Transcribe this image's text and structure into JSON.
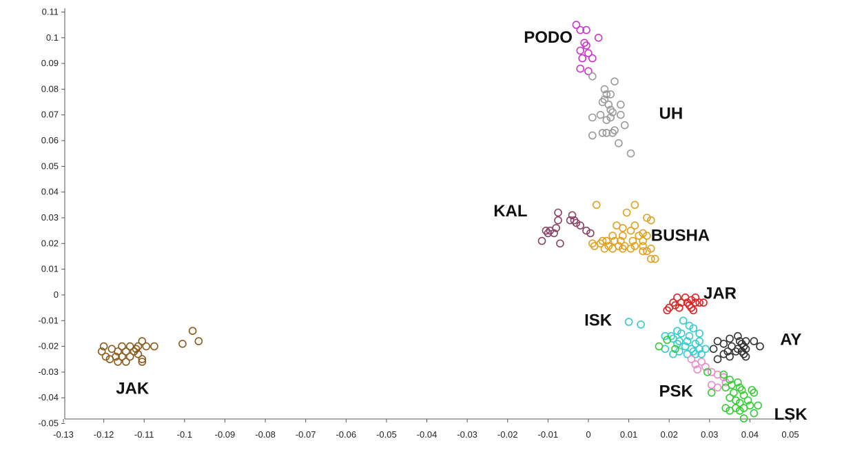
{
  "chart_data": {
    "type": "scatter",
    "title": "",
    "xlabel": "",
    "ylabel": "",
    "xlim": [
      -0.13,
      0.05
    ],
    "ylim": [
      -0.052,
      0.112
    ],
    "grid": false,
    "legend": "none",
    "x_ticks": [
      "-0.13",
      "-0.12",
      "-0.11",
      "-0.1",
      "-0.09",
      "-0.08",
      "-0.07",
      "-0.06",
      "-0.05",
      "-0.04",
      "-0.03",
      "-0.02",
      "-0.01",
      "0",
      "0.01",
      "0.02",
      "0.03",
      "0.04",
      "0.05"
    ],
    "y_ticks": [
      "0.11",
      "0.1",
      "0.09",
      "0.08",
      "0.07",
      "0.06",
      "0.05",
      "0.04",
      "0.03",
      "0.02",
      "0.01",
      "0",
      "-0.01",
      "-0.02",
      "-0.03",
      "-0.04",
      "-0.05"
    ],
    "series": [
      {
        "name": "PODO",
        "color": "#cc33cc",
        "label_at": [
          -0.016,
          0.098
        ],
        "points": [
          [
            -0.003,
            0.105
          ],
          [
            -0.002,
            0.103
          ],
          [
            -0.0005,
            0.103
          ],
          [
            0.0025,
            0.1
          ],
          [
            -0.001,
            0.098
          ],
          [
            -0.0005,
            0.097
          ],
          [
            -0.002,
            0.095
          ],
          [
            0.0,
            0.094
          ],
          [
            -0.0015,
            0.092
          ],
          [
            0.001,
            0.092
          ],
          [
            -0.002,
            0.088
          ],
          [
            0.0,
            0.087
          ]
        ]
      },
      {
        "name": "UH",
        "color": "#999999",
        "label_at": [
          0.0175,
          0.0685
        ],
        "points": [
          [
            0.001,
            0.085
          ],
          [
            0.0065,
            0.083
          ],
          [
            0.004,
            0.08
          ],
          [
            0.0045,
            0.078
          ],
          [
            0.0055,
            0.078
          ],
          [
            0.004,
            0.076
          ],
          [
            0.0035,
            0.075
          ],
          [
            0.005,
            0.074
          ],
          [
            0.008,
            0.074
          ],
          [
            0.0055,
            0.072
          ],
          [
            0.006,
            0.071
          ],
          [
            0.003,
            0.07
          ],
          [
            0.0055,
            0.069
          ],
          [
            0.008,
            0.07
          ],
          [
            0.001,
            0.069
          ],
          [
            0.0045,
            0.068
          ],
          [
            0.009,
            0.066
          ],
          [
            0.0045,
            0.063
          ],
          [
            0.006,
            0.063
          ],
          [
            0.0065,
            0.064
          ],
          [
            0.0035,
            0.063
          ],
          [
            0.001,
            0.062
          ],
          [
            0.0075,
            0.059
          ],
          [
            0.0105,
            0.055
          ]
        ]
      },
      {
        "name": "KAL",
        "color": "#884466",
        "label_at": [
          -0.0235,
          0.0305
        ],
        "points": [
          [
            -0.0075,
            0.032
          ],
          [
            -0.004,
            0.031
          ],
          [
            -0.0075,
            0.029
          ],
          [
            -0.0045,
            0.029
          ],
          [
            -0.0035,
            0.029
          ],
          [
            -0.003,
            0.028
          ],
          [
            -0.002,
            0.027
          ],
          [
            -0.008,
            0.026
          ],
          [
            -0.0105,
            0.025
          ],
          [
            -0.0095,
            0.025
          ],
          [
            -0.0005,
            0.025
          ],
          [
            0.0005,
            0.024
          ],
          [
            -0.01,
            0.024
          ],
          [
            -0.0085,
            0.024
          ],
          [
            -0.0115,
            0.021
          ],
          [
            -0.007,
            0.02
          ]
        ]
      },
      {
        "name": "BUSHA",
        "color": "#e0a020",
        "label_at": [
          0.0155,
          0.021
        ],
        "points": [
          [
            0.002,
            0.035
          ],
          [
            0.0115,
            0.035
          ],
          [
            0.0095,
            0.032
          ],
          [
            0.0145,
            0.03
          ],
          [
            0.0155,
            0.029
          ],
          [
            0.007,
            0.027
          ],
          [
            0.0115,
            0.027
          ],
          [
            0.0085,
            0.026
          ],
          [
            0.0105,
            0.025
          ],
          [
            0.0135,
            0.024
          ],
          [
            0.006,
            0.023
          ],
          [
            0.0085,
            0.023
          ],
          [
            0.0125,
            0.023
          ],
          [
            0.0145,
            0.023
          ],
          [
            0.0035,
            0.021
          ],
          [
            0.0045,
            0.021
          ],
          [
            0.0065,
            0.021
          ],
          [
            0.008,
            0.021
          ],
          [
            0.011,
            0.021
          ],
          [
            0.0135,
            0.021
          ],
          [
            0.001,
            0.02
          ],
          [
            0.003,
            0.02
          ],
          [
            0.005,
            0.019
          ],
          [
            0.0075,
            0.019
          ],
          [
            0.009,
            0.019
          ],
          [
            0.0115,
            0.019
          ],
          [
            0.0135,
            0.019
          ],
          [
            0.0015,
            0.019
          ],
          [
            0.004,
            0.018
          ],
          [
            0.006,
            0.018
          ],
          [
            0.0105,
            0.018
          ],
          [
            0.0085,
            0.018
          ],
          [
            0.0155,
            0.018
          ],
          [
            0.0135,
            0.017
          ],
          [
            0.0145,
            0.017
          ],
          [
            0.0155,
            0.014
          ],
          [
            0.0165,
            0.014
          ]
        ]
      },
      {
        "name": "JAR",
        "color": "#dd2222",
        "label_at": [
          0.0285,
          -0.0015
        ],
        "points": [
          [
            0.022,
            -0.001
          ],
          [
            0.024,
            -0.001
          ],
          [
            0.0265,
            -0.001
          ],
          [
            0.0255,
            -0.002
          ],
          [
            0.021,
            -0.003
          ],
          [
            0.023,
            -0.003
          ],
          [
            0.0245,
            -0.003
          ],
          [
            0.0265,
            -0.003
          ],
          [
            0.0275,
            -0.003
          ],
          [
            0.0285,
            -0.003
          ],
          [
            0.0215,
            -0.004
          ],
          [
            0.025,
            -0.004
          ],
          [
            0.02,
            -0.005
          ],
          [
            0.0225,
            -0.005
          ],
          [
            0.0255,
            -0.005
          ],
          [
            0.026,
            -0.006
          ],
          [
            0.0195,
            -0.006
          ]
        ]
      },
      {
        "name": "ISK",
        "color": "#33cccc",
        "label_at": [
          -0.001,
          -0.012
        ],
        "points": [
          [
            0.01,
            -0.0105
          ],
          [
            0.013,
            -0.0115
          ],
          [
            0.0235,
            -0.01
          ],
          [
            0.025,
            -0.012
          ],
          [
            0.026,
            -0.013
          ],
          [
            0.022,
            -0.014
          ],
          [
            0.023,
            -0.015
          ],
          [
            0.0275,
            -0.015
          ],
          [
            0.019,
            -0.016
          ],
          [
            0.0205,
            -0.016
          ],
          [
            0.025,
            -0.016
          ],
          [
            0.021,
            -0.017
          ],
          [
            0.0225,
            -0.018
          ],
          [
            0.0245,
            -0.018
          ],
          [
            0.0275,
            -0.018
          ],
          [
            0.022,
            -0.019
          ],
          [
            0.0265,
            -0.019
          ],
          [
            0.024,
            -0.02
          ],
          [
            0.019,
            -0.021
          ],
          [
            0.0255,
            -0.021
          ],
          [
            0.0275,
            -0.021
          ],
          [
            0.029,
            -0.021
          ],
          [
            0.0225,
            -0.022
          ],
          [
            0.026,
            -0.022
          ],
          [
            0.021,
            -0.023
          ],
          [
            0.0245,
            -0.023
          ],
          [
            0.0265,
            -0.023
          ],
          [
            0.028,
            -0.023
          ]
        ]
      },
      {
        "name": "AY",
        "color": "#333333",
        "label_at": [
          0.0475,
          -0.0195
        ],
        "points": [
          [
            0.035,
            -0.017
          ],
          [
            0.037,
            -0.016
          ],
          [
            0.039,
            -0.018
          ],
          [
            0.032,
            -0.018
          ],
          [
            0.0375,
            -0.018
          ],
          [
            0.041,
            -0.018
          ],
          [
            0.0335,
            -0.019
          ],
          [
            0.038,
            -0.019
          ],
          [
            0.0355,
            -0.02
          ],
          [
            0.0385,
            -0.02
          ],
          [
            0.0425,
            -0.02
          ],
          [
            0.031,
            -0.021
          ],
          [
            0.037,
            -0.021
          ],
          [
            0.039,
            -0.021
          ],
          [
            0.0345,
            -0.022
          ],
          [
            0.0365,
            -0.022
          ],
          [
            0.038,
            -0.022
          ],
          [
            0.0335,
            -0.023
          ],
          [
            0.0385,
            -0.023
          ],
          [
            0.035,
            -0.024
          ],
          [
            0.039,
            -0.024
          ],
          [
            0.032,
            -0.025
          ]
        ]
      },
      {
        "name": "PSK",
        "color": "#ee88cc",
        "label_at": [
          0.0175,
          -0.0395
        ],
        "points": [
          [
            0.0255,
            -0.025
          ],
          [
            0.028,
            -0.026
          ],
          [
            0.0265,
            -0.027
          ],
          [
            0.029,
            -0.028
          ],
          [
            0.027,
            -0.029
          ],
          [
            0.0305,
            -0.03
          ],
          [
            0.032,
            -0.031
          ],
          [
            0.0335,
            -0.032
          ],
          [
            0.034,
            -0.034
          ],
          [
            0.0305,
            -0.035
          ],
          [
            0.032,
            -0.036
          ]
        ]
      },
      {
        "name": "LSK",
        "color": "#33cc33",
        "label_at": [
          0.046,
          -0.0485
        ],
        "points": [
          [
            0.0195,
            -0.0175
          ],
          [
            0.0175,
            -0.02
          ],
          [
            0.0215,
            -0.021
          ],
          [
            0.0295,
            -0.03
          ],
          [
            0.0335,
            -0.031
          ],
          [
            0.035,
            -0.033
          ],
          [
            0.037,
            -0.034
          ],
          [
            0.0355,
            -0.035
          ],
          [
            0.0375,
            -0.036
          ],
          [
            0.034,
            -0.036
          ],
          [
            0.038,
            -0.037
          ],
          [
            0.0405,
            -0.037
          ],
          [
            0.041,
            -0.038
          ],
          [
            0.036,
            -0.038
          ],
          [
            0.0305,
            -0.038
          ],
          [
            0.0385,
            -0.039
          ],
          [
            0.035,
            -0.04
          ],
          [
            0.0365,
            -0.041
          ],
          [
            0.0395,
            -0.041
          ],
          [
            0.0375,
            -0.042
          ],
          [
            0.04,
            -0.043
          ],
          [
            0.042,
            -0.043
          ],
          [
            0.0365,
            -0.044
          ],
          [
            0.0385,
            -0.044
          ],
          [
            0.034,
            -0.044
          ],
          [
            0.035,
            -0.045
          ],
          [
            0.0375,
            -0.045
          ],
          [
            0.041,
            -0.046
          ],
          [
            0.0385,
            -0.048
          ]
        ]
      },
      {
        "name": "JAK",
        "color": "#8b5a1a",
        "label_at": [
          -0.117,
          -0.0385
        ],
        "points": [
          [
            -0.098,
            -0.014
          ],
          [
            -0.0965,
            -0.018
          ],
          [
            -0.1005,
            -0.019
          ],
          [
            -0.1105,
            -0.018
          ],
          [
            -0.1155,
            -0.02
          ],
          [
            -0.1135,
            -0.02
          ],
          [
            -0.112,
            -0.021
          ],
          [
            -0.1115,
            -0.02
          ],
          [
            -0.1095,
            -0.02
          ],
          [
            -0.1075,
            -0.02
          ],
          [
            -0.12,
            -0.02
          ],
          [
            -0.1205,
            -0.022
          ],
          [
            -0.118,
            -0.021
          ],
          [
            -0.1165,
            -0.022
          ],
          [
            -0.1145,
            -0.022
          ],
          [
            -0.1125,
            -0.022
          ],
          [
            -0.1115,
            -0.023
          ],
          [
            -0.1195,
            -0.024
          ],
          [
            -0.117,
            -0.024
          ],
          [
            -0.1155,
            -0.024
          ],
          [
            -0.1135,
            -0.024
          ],
          [
            -0.1105,
            -0.025
          ],
          [
            -0.1185,
            -0.025
          ],
          [
            -0.1165,
            -0.026
          ],
          [
            -0.1145,
            -0.026
          ],
          [
            -0.1105,
            -0.026
          ]
        ]
      }
    ]
  }
}
